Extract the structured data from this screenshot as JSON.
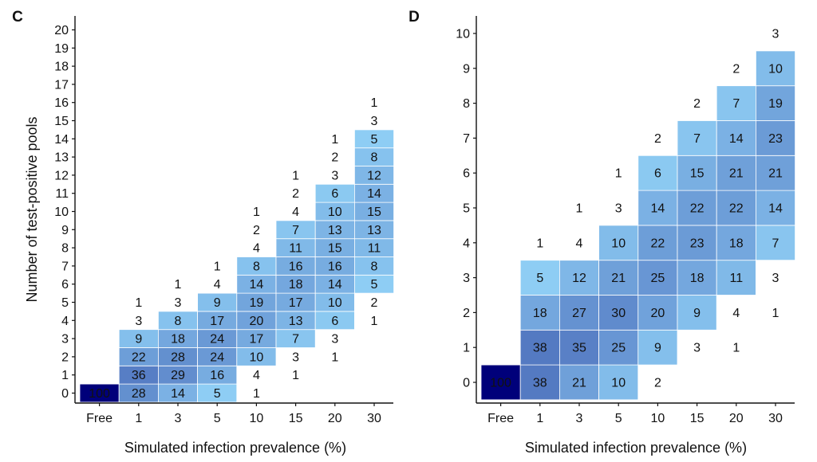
{
  "chart_data": [
    {
      "panel": "C",
      "type": "heatmap",
      "title": "",
      "xlabel": "Simulated infection prevalence (%)",
      "ylabel": "Number of test-positive pools",
      "categories": [
        "Free",
        "1",
        "3",
        "5",
        "10",
        "15",
        "20",
        "30"
      ],
      "y_ticks": [
        "0",
        "1",
        "2",
        "3",
        "4",
        "5",
        "6",
        "7",
        "8",
        "9",
        "10",
        "11",
        "12",
        "13",
        "14",
        "15",
        "16",
        "17",
        "18",
        "19",
        "20"
      ],
      "shading_threshold": 5,
      "colors": {
        "low": "#8ecdf4",
        "high": "#00007a"
      },
      "columns": [
        {
          "category": "Free",
          "counts": {
            "0": 100
          }
        },
        {
          "category": "1",
          "counts": {
            "0": 28,
            "1": 36,
            "2": 22,
            "3": 9,
            "4": 3,
            "5": 1
          }
        },
        {
          "category": "3",
          "counts": {
            "0": 14,
            "1": 29,
            "2": 28,
            "3": 18,
            "4": 8,
            "5": 3,
            "6": 1
          }
        },
        {
          "category": "5",
          "counts": {
            "0": 5,
            "1": 16,
            "2": 24,
            "3": 24,
            "4": 17,
            "5": 9,
            "6": 4,
            "7": 1
          }
        },
        {
          "category": "10",
          "counts": {
            "0": 1,
            "1": 4,
            "2": 10,
            "3": 17,
            "4": 20,
            "5": 19,
            "6": 14,
            "7": 8,
            "8": 4,
            "9": 2,
            "10": 1
          }
        },
        {
          "category": "15",
          "counts": {
            "1": 1,
            "2": 3,
            "3": 7,
            "4": 13,
            "5": 17,
            "6": 18,
            "7": 16,
            "8": 11,
            "9": 7,
            "10": 4,
            "11": 2,
            "12": 1
          }
        },
        {
          "category": "20",
          "counts": {
            "2": 1,
            "3": 3,
            "4": 6,
            "5": 10,
            "6": 14,
            "7": 16,
            "8": 15,
            "9": 13,
            "10": 10,
            "11": 6,
            "12": 3,
            "13": 2,
            "14": 1
          }
        },
        {
          "category": "30",
          "counts": {
            "4": 1,
            "5": 2,
            "6": 5,
            "7": 8,
            "8": 11,
            "9": 13,
            "10": 15,
            "11": 14,
            "12": 12,
            "13": 8,
            "14": 5,
            "15": 3,
            "16": 1
          }
        }
      ]
    },
    {
      "panel": "D",
      "type": "heatmap",
      "title": "",
      "xlabel": "Simulated infection prevalence (%)",
      "ylabel": "",
      "categories": [
        "Free",
        "1",
        "3",
        "5",
        "10",
        "15",
        "20",
        "30"
      ],
      "y_ticks": [
        "0",
        "1",
        "2",
        "3",
        "4",
        "5",
        "6",
        "7",
        "8",
        "9",
        "10"
      ],
      "shading_threshold": 5,
      "colors": {
        "low": "#8ecdf4",
        "high": "#00007a"
      },
      "columns": [
        {
          "category": "Free",
          "counts": {
            "0": 100
          }
        },
        {
          "category": "1",
          "counts": {
            "0": 38,
            "1": 38,
            "2": 18,
            "3": 5,
            "4": 1
          }
        },
        {
          "category": "3",
          "counts": {
            "0": 21,
            "1": 35,
            "2": 27,
            "3": 12,
            "4": 4,
            "5": 1
          }
        },
        {
          "category": "5",
          "counts": {
            "0": 10,
            "1": 25,
            "2": 30,
            "3": 21,
            "4": 10,
            "5": 3,
            "6": 1
          }
        },
        {
          "category": "10",
          "counts": {
            "0": 2,
            "1": 9,
            "2": 20,
            "3": 25,
            "4": 22,
            "5": 14,
            "6": 6,
            "7": 2
          }
        },
        {
          "category": "15",
          "counts": {
            "1": 3,
            "2": 9,
            "3": 18,
            "4": 23,
            "5": 22,
            "6": 15,
            "7": 7,
            "8": 2
          }
        },
        {
          "category": "20",
          "counts": {
            "1": 1,
            "2": 4,
            "3": 11,
            "4": 18,
            "5": 22,
            "6": 21,
            "7": 14,
            "8": 7,
            "9": 2
          }
        },
        {
          "category": "30",
          "counts": {
            "2": 1,
            "3": 3,
            "4": 7,
            "5": 14,
            "6": 21,
            "7": 23,
            "8": 19,
            "9": 10,
            "10": 3
          }
        }
      ]
    }
  ]
}
